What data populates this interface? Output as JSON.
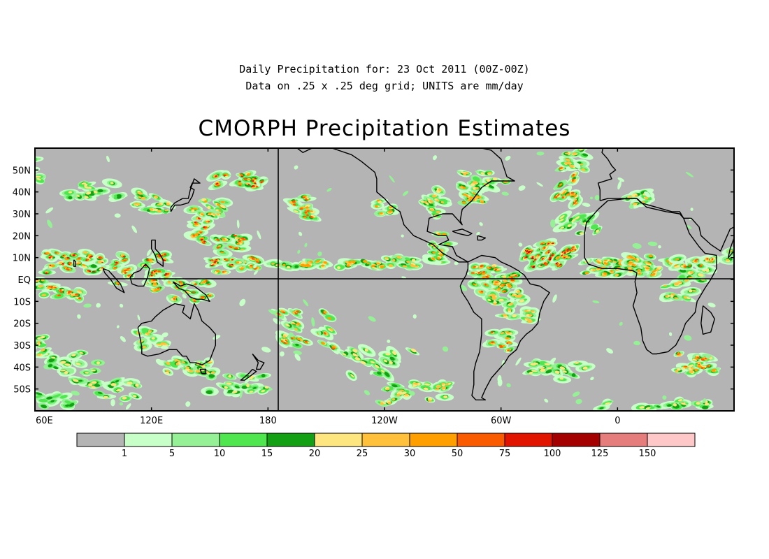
{
  "header": {
    "subtitle_line1": "Daily Precipitation for: 23 Oct 2011 (00Z-00Z)",
    "subtitle_line2": "Data on .25 x .25 deg grid; UNITS are mm/day",
    "title": "CMORPH Precipitation Estimates"
  },
  "map": {
    "lat_labels": [
      "50N",
      "40N",
      "30N",
      "20N",
      "10N",
      "EQ",
      "10S",
      "20S",
      "30S",
      "40S",
      "50S"
    ],
    "lat_values": [
      50,
      40,
      30,
      20,
      10,
      0,
      -10,
      -20,
      -30,
      -40,
      -50
    ],
    "lon_labels": [
      "60E",
      "120E",
      "180",
      "120W",
      "60W",
      "0"
    ],
    "lon_values": [
      60,
      120,
      180,
      240,
      300,
      360
    ],
    "lon_range": [
      60,
      420
    ],
    "lat_range": [
      -60,
      60
    ],
    "reference_lines": [
      "EQ",
      "180"
    ],
    "background_color": "#b4b4b4",
    "coastline_color": "#000000"
  },
  "colorbar": {
    "colors": [
      "#b4b4b4",
      "#c8ffc8",
      "#96f096",
      "#50e650",
      "#14a014",
      "#fde680",
      "#ffc03c",
      "#ffa000",
      "#fa5a00",
      "#e11400",
      "#a50000",
      "#e67d7d",
      "#ffc8c8"
    ],
    "labels": [
      "1",
      "5",
      "10",
      "15",
      "20",
      "25",
      "30",
      "50",
      "75",
      "100",
      "125",
      "150"
    ]
  }
}
